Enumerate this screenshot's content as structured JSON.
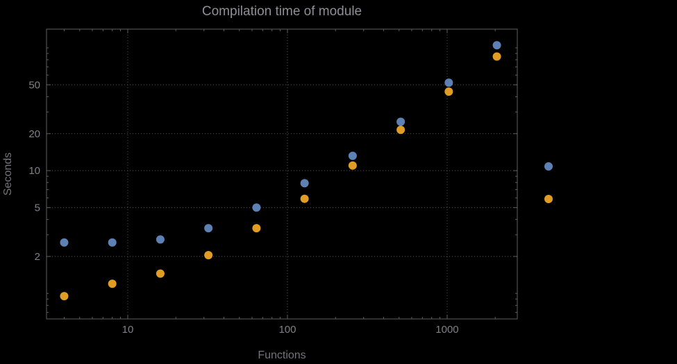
{
  "figure": {
    "background": "#000000",
    "frame_color": "#5f5f5f",
    "grid_color": "#565656",
    "point_radius": 6
  },
  "chart_data": {
    "type": "scatter",
    "title": "Compilation time of module",
    "xlabel": "Functions",
    "ylabel": "Seconds",
    "x_scale": "log",
    "y_scale": "log",
    "xlim": [
      3.1,
      2750
    ],
    "ylim": [
      0.62,
      142
    ],
    "x_ticks": [
      10,
      100,
      1000
    ],
    "x_tick_labels": [
      "10",
      "100",
      "1000"
    ],
    "y_ticks": [
      2,
      5,
      10,
      20,
      50
    ],
    "y_tick_labels": [
      "2",
      "5",
      "10",
      "20",
      "50"
    ],
    "grid": true,
    "series": [
      {
        "name": "series-1",
        "color": "#5E81B5",
        "x": [
          4,
          8,
          16,
          32,
          64,
          128,
          256,
          512,
          1024,
          2048
        ],
        "y": [
          2.6,
          2.6,
          2.75,
          3.4,
          5.0,
          7.9,
          13.2,
          25,
          52,
          105
        ]
      },
      {
        "name": "series-2",
        "color": "#E19C24",
        "x": [
          4,
          8,
          16,
          32,
          64,
          128,
          256,
          512,
          1024,
          2048
        ],
        "y": [
          0.95,
          1.2,
          1.45,
          2.05,
          3.4,
          5.9,
          11,
          21.5,
          44,
          85
        ]
      }
    ],
    "legend": {
      "position": "outside-right",
      "labels_visible": false,
      "entries": [
        {
          "series": "series-1",
          "color": "#5E81B5",
          "label": ""
        },
        {
          "series": "series-2",
          "color": "#E19C24",
          "label": ""
        }
      ]
    }
  }
}
